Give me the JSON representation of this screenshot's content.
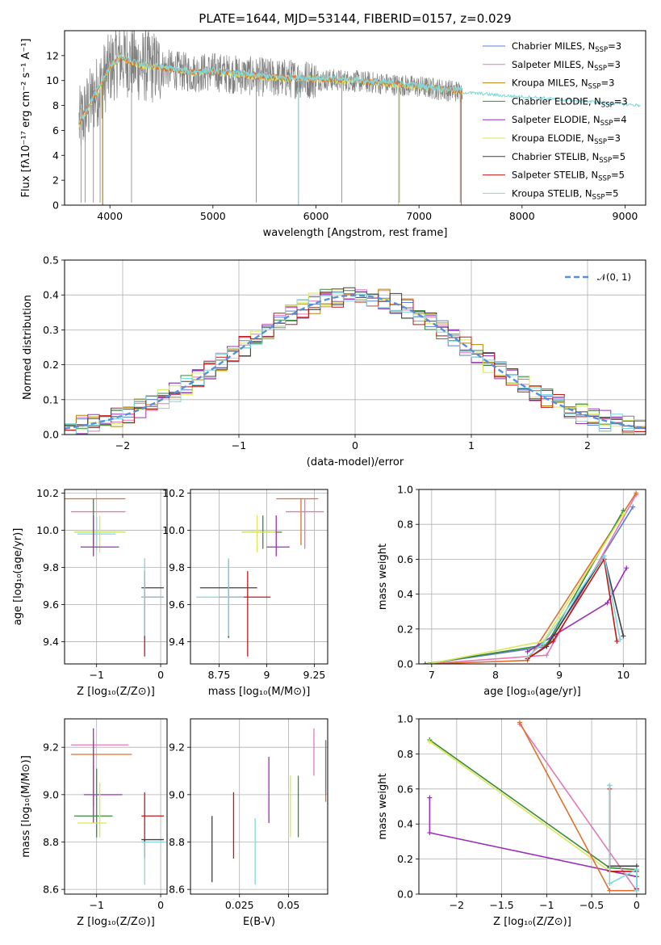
{
  "figure": {
    "title": "PLATE=1644, MJD=53144, FIBERID=0157, z=0.029"
  },
  "colors": {
    "Chabrier MILES": "#5a7fd4",
    "Salpeter MILES": "#e07ab8",
    "Kroupa MILES": "#b5860b",
    "Chabrier ELODIE": "#3a8a3a",
    "Salpeter ELODIE": "#9b30b8",
    "Kroupa ELODIE": "#d8e85a",
    "Chabrier STELIB": "#404040",
    "Salpeter STELIB": "#c01818",
    "Kroupa STELIB": "#7fd8e0",
    "data": "#808080",
    "model_orange": "#e07030",
    "gaussian": "#5a8fd8"
  },
  "chart_data": [
    {
      "id": "spectrum",
      "type": "line",
      "xlabel": "wavelength [Angstrom, rest frame]",
      "ylabel": "Flux [fλ10⁻¹⁷ erg cm⁻² s⁻¹ A⁻¹]",
      "xlim": [
        3560,
        9200
      ],
      "ylim": [
        0,
        14
      ],
      "xticks": [
        4000,
        5000,
        6000,
        7000,
        8000,
        9000
      ],
      "yticks": [
        0,
        2,
        4,
        6,
        8,
        10,
        12
      ],
      "grid": false,
      "legend_position": "top-right",
      "legend": [
        "Chabrier MILES, N_SSP=3",
        "Salpeter MILES, N_SSP=3",
        "Kroupa MILES, N_SSP=3",
        "Chabrier ELODIE, N_SSP=3",
        "Salpeter ELODIE, N_SSP=4",
        "Kroupa ELODIE, N_SSP=3",
        "Chabrier STELIB, N_SSP=5",
        "Salpeter STELIB, N_SSP=5",
        "Kroupa STELIB, N_SSP=5"
      ],
      "legend_display": [
        [
          "Chabrier MILES, N",
          "SSP",
          "=3"
        ],
        [
          "Salpeter MILES, N",
          "SSP",
          "=3"
        ],
        [
          "Kroupa MILES, N",
          "SSP",
          "=3"
        ],
        [
          "Chabrier ELODIE, N",
          "SSP",
          "=3"
        ],
        [
          "Salpeter ELODIE, N",
          "SSP",
          "=4"
        ],
        [
          "Kroupa ELODIE, N",
          "SSP",
          "=3"
        ],
        [
          "Chabrier STELIB, N",
          "SSP",
          "=5"
        ],
        [
          "Salpeter STELIB, N",
          "SSP",
          "=5"
        ],
        [
          "Kroupa STELIB, N",
          "SSP",
          "=5"
        ]
      ],
      "continuum": {
        "x": [
          3700,
          3800,
          3900,
          4000,
          4100,
          4300,
          4500,
          4800,
          5000,
          5300,
          5600,
          6000,
          6300,
          6600,
          7000,
          7300,
          7420
        ],
        "y": [
          6.5,
          8.0,
          9.5,
          11.0,
          11.8,
          11.2,
          11.0,
          10.6,
          10.7,
          10.4,
          10.2,
          10.1,
          10.0,
          9.8,
          9.5,
          9.2,
          9.1
        ]
      },
      "extended_model": {
        "x": [
          7420,
          7600,
          7800,
          8000,
          8200,
          8400,
          8600,
          8800,
          9000,
          9150
        ],
        "y": [
          9.05,
          8.95,
          8.8,
          8.7,
          8.6,
          8.45,
          8.35,
          8.2,
          8.1,
          8.0
        ]
      },
      "model_dropouts": [
        {
          "x": 3930,
          "to": 0
        },
        {
          "x": 5830,
          "to": 0
        },
        {
          "x": 6800,
          "to": 0
        },
        {
          "x": 7410,
          "to": 0
        }
      ]
    },
    {
      "id": "residuals",
      "type": "histogram",
      "xlabel": "(data-model)/error",
      "ylabel": "Normed distribution",
      "xlim": [
        -2.5,
        2.5
      ],
      "ylim": [
        0,
        0.5
      ],
      "xticks": [
        -2,
        -1,
        0,
        1,
        2
      ],
      "yticks": [
        0.0,
        0.1,
        0.2,
        0.3,
        0.4,
        0.5
      ],
      "grid": true,
      "legend_position": "top-right",
      "legend": [
        "𝒩(0, 1)"
      ],
      "bins": 50,
      "gaussian": {
        "mu": 0,
        "sigma": 1
      }
    },
    {
      "id": "age_vs_Z",
      "type": "scatter",
      "xlabel": "Z [log₁₀(Z/Z⊙)]",
      "ylabel": "age  [log₁₀(age/yr)]",
      "xlim": [
        -1.5,
        0.1
      ],
      "ylim": [
        9.28,
        10.22
      ],
      "xticks": [
        -1,
        0
      ],
      "yticks": [
        9.4,
        9.6,
        9.8,
        10.0,
        10.2
      ],
      "grid": true,
      "points": [
        {
          "x": -0.95,
          "y": 10.17,
          "xlo": -1.5,
          "xhi": -0.55,
          "ylo": 10.17,
          "yhi": 10.17,
          "c": "model_orange"
        },
        {
          "x": -1.0,
          "y": 10.1,
          "xlo": -1.4,
          "xhi": -0.55,
          "ylo": 10.1,
          "yhi": 10.1,
          "c": "Salpeter MILES"
        },
        {
          "x": -1.05,
          "y": 9.99,
          "xlo": -1.35,
          "xhi": -0.55,
          "ylo": 9.92,
          "yhi": 10.17,
          "c": "Chabrier ELODIE"
        },
        {
          "x": -0.95,
          "y": 9.99,
          "xlo": -1.35,
          "xhi": -0.55,
          "ylo": 9.88,
          "yhi": 10.08,
          "c": "Kroupa ELODIE"
        },
        {
          "x": -1.0,
          "y": 9.98,
          "xlo": -1.3,
          "xhi": -0.7,
          "ylo": 9.89,
          "yhi": 10.07,
          "c": "Kroupa STELIB"
        },
        {
          "x": -1.05,
          "y": 9.91,
          "xlo": -1.25,
          "xhi": -0.65,
          "ylo": 9.86,
          "yhi": 10.08,
          "c": "Salpeter ELODIE"
        },
        {
          "x": -0.25,
          "y": 9.69,
          "xlo": -0.3,
          "xhi": 0.05,
          "ylo": 9.42,
          "yhi": 9.78,
          "c": "Chabrier STELIB"
        },
        {
          "x": -0.25,
          "y": 9.64,
          "xlo": -0.3,
          "xhi": 0.05,
          "ylo": 9.32,
          "yhi": 9.78,
          "c": "Salpeter STELIB"
        },
        {
          "x": -0.25,
          "y": 9.64,
          "xlo": -0.3,
          "xhi": 0.05,
          "ylo": 9.43,
          "yhi": 9.85,
          "c": "Kroupa STELIB"
        }
      ]
    },
    {
      "id": "age_vs_mass",
      "type": "scatter",
      "xlabel": "mass [log₁₀(M/M⊙)]",
      "ylabel": "",
      "xlim": [
        8.6,
        9.32
      ],
      "ylim": [
        9.28,
        10.22
      ],
      "xticks": [
        8.75,
        9.0,
        9.25
      ],
      "yticks": [
        9.4,
        9.6,
        9.8,
        10.0,
        10.2
      ],
      "grid": true,
      "points": [
        {
          "x": 9.18,
          "y": 10.17,
          "xlo": 9.05,
          "xhi": 9.27,
          "ylo": 9.92,
          "yhi": 10.17,
          "c": "model_orange"
        },
        {
          "x": 9.2,
          "y": 10.1,
          "xlo": 9.1,
          "xhi": 9.3,
          "ylo": 9.9,
          "yhi": 10.17,
          "c": "Salpeter MILES"
        },
        {
          "x": 8.98,
          "y": 9.99,
          "xlo": 8.87,
          "xhi": 9.08,
          "ylo": 9.9,
          "yhi": 10.08,
          "c": "Chabrier ELODIE"
        },
        {
          "x": 8.95,
          "y": 9.99,
          "xlo": 8.87,
          "xhi": 9.05,
          "ylo": 9.88,
          "yhi": 10.08,
          "c": "Kroupa ELODIE"
        },
        {
          "x": 9.05,
          "y": 9.91,
          "xlo": 9.0,
          "xhi": 9.12,
          "ylo": 9.86,
          "yhi": 10.08,
          "c": "Salpeter ELODIE"
        },
        {
          "x": 8.8,
          "y": 9.69,
          "xlo": 8.65,
          "xhi": 8.95,
          "ylo": 9.42,
          "yhi": 9.84,
          "c": "Chabrier STELIB"
        },
        {
          "x": 8.9,
          "y": 9.64,
          "xlo": 8.75,
          "xhi": 9.02,
          "ylo": 9.32,
          "yhi": 9.78,
          "c": "Salpeter STELIB"
        },
        {
          "x": 8.8,
          "y": 9.64,
          "xlo": 8.63,
          "xhi": 8.88,
          "ylo": 9.43,
          "yhi": 9.85,
          "c": "Kroupa STELIB"
        }
      ]
    },
    {
      "id": "mass_weight_vs_age",
      "type": "line",
      "xlabel": "age  [log₁₀(age/yr)]",
      "ylabel": "mass weight",
      "xlim": [
        6.8,
        10.35
      ],
      "ylim": [
        0,
        1.0
      ],
      "xticks": [
        7,
        8,
        9,
        10
      ],
      "yticks": [
        0.0,
        0.2,
        0.4,
        0.6,
        0.8,
        1.0
      ],
      "grid": true,
      "series": [
        {
          "name": "Chabrier MILES",
          "x": [
            6.9,
            8.8,
            10.15
          ],
          "y": [
            0.0,
            0.1,
            0.9
          ]
        },
        {
          "name": "Salpeter MILES",
          "x": [
            6.9,
            8.8,
            10.2
          ],
          "y": [
            0.0,
            0.05,
            0.97
          ]
        },
        {
          "name": "Kroupa MILES",
          "x": [
            6.95,
            8.5,
            10.2
          ],
          "y": [
            0.0,
            0.02,
            0.98
          ]
        },
        {
          "name": "Chabrier ELODIE",
          "x": [
            6.9,
            8.8,
            10.0
          ],
          "y": [
            0.0,
            0.11,
            0.88
          ]
        },
        {
          "name": "Salpeter ELODIE",
          "x": [
            8.5,
            8.9,
            9.75,
            10.05
          ],
          "y": [
            0.07,
            0.16,
            0.35,
            0.55
          ]
        },
        {
          "name": "Kroupa ELODIE",
          "x": [
            6.95,
            8.75,
            10.0
          ],
          "y": [
            0.0,
            0.13,
            0.86
          ]
        },
        {
          "name": "Chabrier STELIB",
          "x": [
            8.5,
            8.8,
            9.7,
            10.0
          ],
          "y": [
            0.03,
            0.1,
            0.62,
            0.16
          ]
        },
        {
          "name": "Salpeter STELIB",
          "x": [
            8.5,
            8.9,
            9.7,
            9.9
          ],
          "y": [
            0.03,
            0.13,
            0.6,
            0.13
          ]
        },
        {
          "name": "Kroupa STELIB",
          "x": [
            8.5,
            8.75,
            9.7,
            9.95
          ],
          "y": [
            0.04,
            0.12,
            0.62,
            0.14
          ]
        }
      ]
    },
    {
      "id": "mass_vs_Z",
      "type": "scatter",
      "xlabel": "Z [log₁₀(Z/Z⊙)]",
      "ylabel": "mass [log₁₀(M/M⊙)]",
      "xlim": [
        -1.5,
        0.1
      ],
      "ylim": [
        8.58,
        9.32
      ],
      "xticks": [
        -1,
        0
      ],
      "yticks": [
        8.6,
        8.8,
        9.0,
        9.2
      ],
      "grid": true,
      "points": [
        {
          "x": -1.1,
          "y": 9.21,
          "xlo": -1.4,
          "xhi": -0.5,
          "ylo": 9.21,
          "yhi": 9.21,
          "c": "Salpeter MILES"
        },
        {
          "x": -1.05,
          "y": 9.17,
          "xlo": -1.4,
          "xhi": -0.45,
          "ylo": 8.95,
          "yhi": 9.23,
          "c": "model_orange"
        },
        {
          "x": -1.05,
          "y": 9.0,
          "xlo": -1.2,
          "xhi": -0.6,
          "ylo": 8.88,
          "yhi": 9.28,
          "c": "Salpeter ELODIE"
        },
        {
          "x": -1.0,
          "y": 8.91,
          "xlo": -1.35,
          "xhi": -0.75,
          "ylo": 8.82,
          "yhi": 9.11,
          "c": "Chabrier ELODIE"
        },
        {
          "x": -0.95,
          "y": 8.88,
          "xlo": -1.3,
          "xhi": -0.85,
          "ylo": 8.82,
          "yhi": 9.05,
          "c": "Kroupa ELODIE"
        },
        {
          "x": -0.25,
          "y": 8.91,
          "xlo": -0.3,
          "xhi": 0.05,
          "ylo": 8.73,
          "yhi": 9.01,
          "c": "Salpeter STELIB"
        },
        {
          "x": -0.25,
          "y": 8.81,
          "xlo": -0.3,
          "xhi": 0.05,
          "ylo": 8.74,
          "yhi": 8.81,
          "c": "Chabrier STELIB"
        },
        {
          "x": -0.25,
          "y": 8.8,
          "xlo": -0.3,
          "xhi": 0.05,
          "ylo": 8.62,
          "yhi": 8.8,
          "c": "Kroupa STELIB"
        }
      ]
    },
    {
      "id": "mass_vs_ebv",
      "type": "scatter",
      "xlabel": "E(B-V)",
      "ylabel": "",
      "xlim": [
        0.0,
        0.07
      ],
      "ylim": [
        8.58,
        9.32
      ],
      "xticks": [
        0.025,
        0.05
      ],
      "yticks": [
        8.6,
        8.8,
        9.0,
        9.2
      ],
      "grid": true,
      "points": [
        {
          "x": 0.011,
          "ylo": 8.63,
          "yhi": 8.91,
          "c": "Chabrier STELIB"
        },
        {
          "x": 0.022,
          "ylo": 8.73,
          "yhi": 9.01,
          "c": "Salpeter STELIB"
        },
        {
          "x": 0.033,
          "ylo": 8.62,
          "yhi": 8.9,
          "c": "Kroupa STELIB"
        },
        {
          "x": 0.04,
          "ylo": 8.88,
          "yhi": 9.16,
          "c": "Salpeter ELODIE"
        },
        {
          "x": 0.051,
          "ylo": 8.82,
          "yhi": 9.08,
          "c": "Kroupa ELODIE"
        },
        {
          "x": 0.055,
          "ylo": 8.82,
          "yhi": 9.08,
          "c": "Chabrier ELODIE"
        },
        {
          "x": 0.063,
          "ylo": 9.08,
          "yhi": 9.28,
          "c": "Salpeter MILES"
        },
        {
          "x": 0.069,
          "ylo": 8.97,
          "yhi": 9.23,
          "c": "model_orange"
        },
        {
          "x": 0.069,
          "ylo": 9.0,
          "yhi": 9.23,
          "c": "Chabrier MILES"
        }
      ]
    },
    {
      "id": "mass_weight_vs_Z",
      "type": "line",
      "xlabel": "Z [log₁₀(Z/Z⊙)]",
      "ylabel": "mass weight",
      "xlim": [
        -2.42,
        0.1
      ],
      "ylim": [
        0,
        1.0
      ],
      "xticks": [
        -2.0,
        -1.5,
        -1.0,
        -0.5,
        0.0
      ],
      "yticks": [
        0.0,
        0.2,
        0.4,
        0.6,
        0.8,
        1.0
      ],
      "grid": true,
      "series": [
        {
          "name": "Chabrier ELODIE",
          "x": [
            -2.3,
            -0.3,
            0.0
          ],
          "y": [
            0.88,
            0.15,
            0.14
          ]
        },
        {
          "name": "Kroupa ELODIE",
          "x": [
            -2.3,
            -0.3,
            0.0
          ],
          "y": [
            0.87,
            0.13,
            0.1
          ]
        },
        {
          "name": "Salpeter ELODIE",
          "x": [
            -2.3,
            -2.3,
            0.0
          ],
          "y": [
            0.55,
            0.35,
            0.1
          ]
        },
        {
          "name": "Salpeter MILES",
          "x": [
            -1.3,
            0.0
          ],
          "y": [
            0.97,
            0.02
          ]
        },
        {
          "name": "Kroupa MILES",
          "x": [
            -1.3,
            -0.3,
            0.0
          ],
          "y": [
            0.98,
            0.02,
            0.02
          ]
        },
        {
          "name": "Chabrier STELIB",
          "x": [
            -0.3,
            -0.3,
            0.0,
            0.0
          ],
          "y": [
            0.62,
            0.16,
            0.16,
            0.03
          ]
        },
        {
          "name": "Salpeter STELIB",
          "x": [
            -0.3,
            -0.3,
            0.0,
            0.0
          ],
          "y": [
            0.6,
            0.13,
            0.13,
            0.03
          ]
        },
        {
          "name": "Kroupa STELIB",
          "x": [
            -0.3,
            -0.3,
            0.0,
            0.0
          ],
          "y": [
            0.62,
            0.06,
            0.14,
            0.02
          ]
        }
      ]
    }
  ]
}
